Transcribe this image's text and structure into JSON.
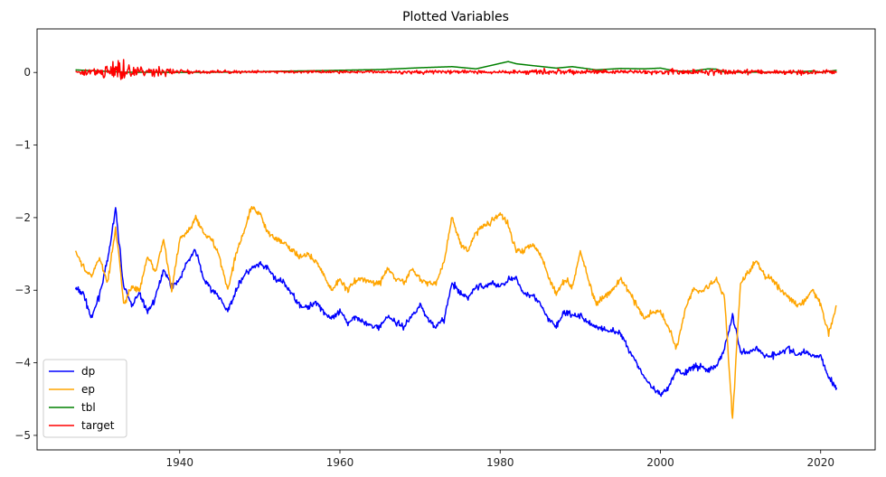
{
  "chart_data": {
    "type": "line",
    "title": "Plotted Variables",
    "xlabel": "",
    "ylabel": "",
    "xlim": [
      1922.2,
      2026.8
    ],
    "ylim": [
      -5.2,
      0.6
    ],
    "x_ticks": [
      1940,
      1960,
      1980,
      2000,
      2020
    ],
    "x_tick_labels": [
      "1940",
      "1960",
      "1980",
      "2000",
      "2020"
    ],
    "y_ticks": [
      0,
      -1,
      -2,
      -3,
      -4,
      -5
    ],
    "y_tick_labels": [
      "0",
      "−1",
      "−2",
      "−3",
      "−4",
      "−5"
    ],
    "grid": false,
    "legend": {
      "position": "lower-left",
      "entries": [
        "dp",
        "ep",
        "tbl",
        "target"
      ]
    },
    "series": [
      {
        "name": "dp",
        "color": "#0000ff",
        "points": [
          [
            1927,
            -2.98
          ],
          [
            1928,
            -3.05
          ],
          [
            1929,
            -3.4
          ],
          [
            1930,
            -3.05
          ],
          [
            1931,
            -2.6
          ],
          [
            1932,
            -1.88
          ],
          [
            1932.5,
            -2.4
          ],
          [
            1933,
            -2.95
          ],
          [
            1934,
            -3.2
          ],
          [
            1935,
            -3.05
          ],
          [
            1936,
            -3.3
          ],
          [
            1937,
            -3.1
          ],
          [
            1938,
            -2.7
          ],
          [
            1939,
            -2.95
          ],
          [
            1940,
            -2.85
          ],
          [
            1941,
            -2.6
          ],
          [
            1942,
            -2.45
          ],
          [
            1943,
            -2.85
          ],
          [
            1944,
            -3.0
          ],
          [
            1945,
            -3.1
          ],
          [
            1946,
            -3.3
          ],
          [
            1947,
            -3.0
          ],
          [
            1948,
            -2.8
          ],
          [
            1949,
            -2.7
          ],
          [
            1950,
            -2.65
          ],
          [
            1951,
            -2.7
          ],
          [
            1952,
            -2.85
          ],
          [
            1953,
            -2.9
          ],
          [
            1954,
            -3.05
          ],
          [
            1955,
            -3.2
          ],
          [
            1956,
            -3.25
          ],
          [
            1957,
            -3.15
          ],
          [
            1958,
            -3.3
          ],
          [
            1959,
            -3.4
          ],
          [
            1960,
            -3.3
          ],
          [
            1961,
            -3.45
          ],
          [
            1962,
            -3.35
          ],
          [
            1963,
            -3.45
          ],
          [
            1964,
            -3.5
          ],
          [
            1965,
            -3.5
          ],
          [
            1966,
            -3.35
          ],
          [
            1967,
            -3.45
          ],
          [
            1968,
            -3.5
          ],
          [
            1969,
            -3.35
          ],
          [
            1970,
            -3.2
          ],
          [
            1971,
            -3.4
          ],
          [
            1972,
            -3.5
          ],
          [
            1973,
            -3.4
          ],
          [
            1974,
            -2.9
          ],
          [
            1975,
            -3.05
          ],
          [
            1976,
            -3.1
          ],
          [
            1977,
            -2.95
          ],
          [
            1978,
            -2.95
          ],
          [
            1979,
            -2.9
          ],
          [
            1980,
            -2.95
          ],
          [
            1981,
            -2.85
          ],
          [
            1982,
            -2.85
          ],
          [
            1983,
            -3.05
          ],
          [
            1984,
            -3.05
          ],
          [
            1985,
            -3.2
          ],
          [
            1986,
            -3.4
          ],
          [
            1987,
            -3.5
          ],
          [
            1988,
            -3.3
          ],
          [
            1989,
            -3.35
          ],
          [
            1990,
            -3.35
          ],
          [
            1991,
            -3.45
          ],
          [
            1992,
            -3.5
          ],
          [
            1993,
            -3.55
          ],
          [
            1994,
            -3.55
          ],
          [
            1995,
            -3.6
          ],
          [
            1996,
            -3.8
          ],
          [
            1997,
            -4.0
          ],
          [
            1998,
            -4.2
          ],
          [
            1999,
            -4.35
          ],
          [
            2000,
            -4.45
          ],
          [
            2001,
            -4.35
          ],
          [
            2002,
            -4.1
          ],
          [
            2003,
            -4.15
          ],
          [
            2004,
            -4.05
          ],
          [
            2005,
            -4.05
          ],
          [
            2006,
            -4.1
          ],
          [
            2007,
            -4.05
          ],
          [
            2008,
            -3.8
          ],
          [
            2009,
            -3.35
          ],
          [
            2009.5,
            -3.6
          ],
          [
            2010,
            -3.85
          ],
          [
            2011,
            -3.85
          ],
          [
            2012,
            -3.8
          ],
          [
            2013,
            -3.9
          ],
          [
            2014,
            -3.9
          ],
          [
            2015,
            -3.85
          ],
          [
            2016,
            -3.8
          ],
          [
            2017,
            -3.9
          ],
          [
            2018,
            -3.85
          ],
          [
            2019,
            -3.9
          ],
          [
            2020,
            -3.9
          ],
          [
            2021,
            -4.2
          ],
          [
            2022,
            -4.35
          ]
        ]
      },
      {
        "name": "ep",
        "color": "#ffa500",
        "points": [
          [
            1927,
            -2.45
          ],
          [
            1928,
            -2.7
          ],
          [
            1929,
            -2.8
          ],
          [
            1930,
            -2.55
          ],
          [
            1931,
            -2.9
          ],
          [
            1932,
            -2.15
          ],
          [
            1932.5,
            -2.6
          ],
          [
            1933,
            -3.2
          ],
          [
            1934,
            -2.95
          ],
          [
            1935,
            -3.0
          ],
          [
            1936,
            -2.55
          ],
          [
            1937,
            -2.75
          ],
          [
            1938,
            -2.3
          ],
          [
            1939,
            -3.0
          ],
          [
            1940,
            -2.3
          ],
          [
            1941,
            -2.2
          ],
          [
            1942,
            -2.0
          ],
          [
            1943,
            -2.2
          ],
          [
            1944,
            -2.3
          ],
          [
            1945,
            -2.55
          ],
          [
            1946,
            -3.0
          ],
          [
            1947,
            -2.5
          ],
          [
            1948,
            -2.2
          ],
          [
            1949,
            -1.85
          ],
          [
            1950,
            -1.95
          ],
          [
            1951,
            -2.2
          ],
          [
            1952,
            -2.3
          ],
          [
            1953,
            -2.35
          ],
          [
            1954,
            -2.45
          ],
          [
            1955,
            -2.55
          ],
          [
            1956,
            -2.5
          ],
          [
            1957,
            -2.6
          ],
          [
            1958,
            -2.8
          ],
          [
            1959,
            -3.0
          ],
          [
            1960,
            -2.85
          ],
          [
            1961,
            -3.0
          ],
          [
            1962,
            -2.85
          ],
          [
            1963,
            -2.85
          ],
          [
            1964,
            -2.9
          ],
          [
            1965,
            -2.9
          ],
          [
            1966,
            -2.7
          ],
          [
            1967,
            -2.85
          ],
          [
            1968,
            -2.9
          ],
          [
            1969,
            -2.7
          ],
          [
            1970,
            -2.85
          ],
          [
            1971,
            -2.9
          ],
          [
            1972,
            -2.9
          ],
          [
            1973,
            -2.6
          ],
          [
            1974,
            -2.0
          ],
          [
            1975,
            -2.35
          ],
          [
            1976,
            -2.45
          ],
          [
            1977,
            -2.2
          ],
          [
            1978,
            -2.1
          ],
          [
            1979,
            -2.05
          ],
          [
            1980,
            -1.95
          ],
          [
            1981,
            -2.1
          ],
          [
            1982,
            -2.45
          ],
          [
            1983,
            -2.45
          ],
          [
            1984,
            -2.35
          ],
          [
            1985,
            -2.5
          ],
          [
            1986,
            -2.8
          ],
          [
            1987,
            -3.05
          ],
          [
            1988,
            -2.85
          ],
          [
            1989,
            -2.95
          ],
          [
            1990,
            -2.45
          ],
          [
            1991,
            -2.85
          ],
          [
            1992,
            -3.2
          ],
          [
            1993,
            -3.1
          ],
          [
            1994,
            -3.0
          ],
          [
            1995,
            -2.85
          ],
          [
            1996,
            -3.0
          ],
          [
            1997,
            -3.2
          ],
          [
            1998,
            -3.4
          ],
          [
            1999,
            -3.3
          ],
          [
            2000,
            -3.3
          ],
          [
            2001,
            -3.5
          ],
          [
            2002,
            -3.8
          ],
          [
            2003,
            -3.3
          ],
          [
            2004,
            -3.0
          ],
          [
            2005,
            -3.0
          ],
          [
            2006,
            -2.95
          ],
          [
            2007,
            -2.85
          ],
          [
            2008,
            -3.1
          ],
          [
            2009,
            -4.8
          ],
          [
            2009.5,
            -3.8
          ],
          [
            2010,
            -2.9
          ],
          [
            2011,
            -2.75
          ],
          [
            2012,
            -2.6
          ],
          [
            2013,
            -2.8
          ],
          [
            2014,
            -2.85
          ],
          [
            2015,
            -3.0
          ],
          [
            2016,
            -3.1
          ],
          [
            2017,
            -3.2
          ],
          [
            2018,
            -3.15
          ],
          [
            2019,
            -3.0
          ],
          [
            2020,
            -3.2
          ],
          [
            2021,
            -3.6
          ],
          [
            2022,
            -3.2
          ]
        ]
      },
      {
        "name": "tbl",
        "color": "#008000",
        "points": [
          [
            1927,
            0.035
          ],
          [
            1930,
            0.02
          ],
          [
            1933,
            0.003
          ],
          [
            1940,
            0.001
          ],
          [
            1947,
            0.005
          ],
          [
            1953,
            0.018
          ],
          [
            1958,
            0.025
          ],
          [
            1960,
            0.03
          ],
          [
            1965,
            0.04
          ],
          [
            1970,
            0.065
          ],
          [
            1974,
            0.08
          ],
          [
            1977,
            0.05
          ],
          [
            1979,
            0.1
          ],
          [
            1981,
            0.15
          ],
          [
            1982,
            0.12
          ],
          [
            1984,
            0.095
          ],
          [
            1987,
            0.06
          ],
          [
            1989,
            0.08
          ],
          [
            1992,
            0.035
          ],
          [
            1995,
            0.055
          ],
          [
            1998,
            0.05
          ],
          [
            2000,
            0.06
          ],
          [
            2002,
            0.017
          ],
          [
            2004,
            0.02
          ],
          [
            2006,
            0.05
          ],
          [
            2007,
            0.045
          ],
          [
            2008,
            0.005
          ],
          [
            2016,
            0.002
          ],
          [
            2019,
            0.02
          ],
          [
            2020,
            0.001
          ],
          [
            2022,
            0.03
          ]
        ]
      },
      {
        "name": "target",
        "color": "#ff0000",
        "noise_amplitude": [
          [
            1927,
            0.05
          ],
          [
            1929,
            0.08
          ],
          [
            1931,
            0.25
          ],
          [
            1932.5,
            0.3
          ],
          [
            1934,
            0.2
          ],
          [
            1936,
            0.08
          ],
          [
            1937.5,
            0.15
          ],
          [
            1939,
            0.1
          ],
          [
            1941,
            0.04
          ],
          [
            1950,
            0.03
          ],
          [
            1960,
            0.03
          ],
          [
            1973,
            0.05
          ],
          [
            1975,
            0.06
          ],
          [
            1980,
            0.04
          ],
          [
            1987,
            0.08
          ],
          [
            1990,
            0.05
          ],
          [
            2000,
            0.06
          ],
          [
            2008,
            0.08
          ],
          [
            2009,
            0.1
          ],
          [
            2012,
            0.05
          ],
          [
            2020,
            0.07
          ],
          [
            2022,
            0.05
          ]
        ]
      }
    ]
  }
}
